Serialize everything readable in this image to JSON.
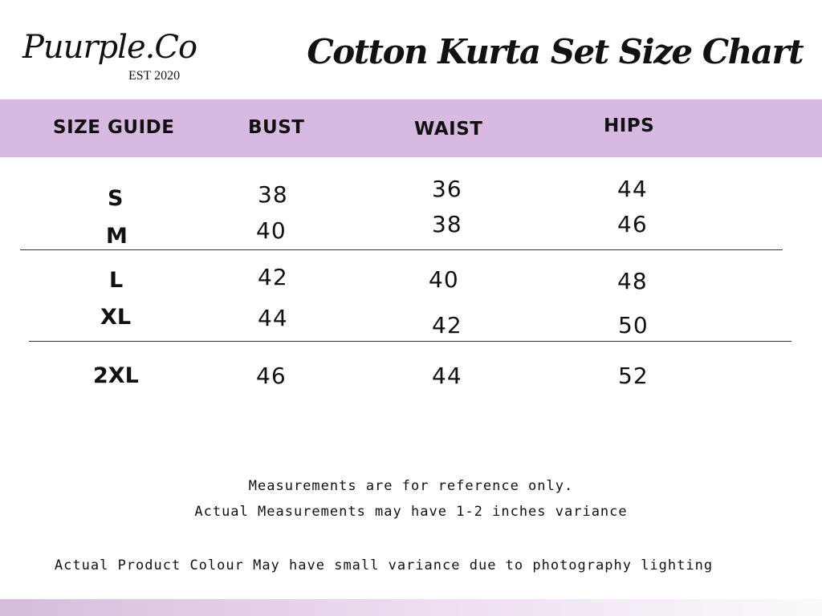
{
  "brand": {
    "logo_text": "Puurple.Co",
    "est": "EST 2020"
  },
  "title": "Cotton Kurta  Set Size Chart",
  "colors": {
    "header_band": "#d8b9e1",
    "footer_gradient_start": "#d6bcdd"
  },
  "table": {
    "headers": [
      "SIZE GUIDE",
      "BUST",
      "WAIST",
      "HIPS"
    ],
    "rows": [
      {
        "size": "S",
        "bust": "38",
        "waist": "36",
        "hips": "44"
      },
      {
        "size": "M",
        "bust": "40",
        "waist": "38",
        "hips": "46"
      },
      {
        "size": "L",
        "bust": "42",
        "waist": "40",
        "hips": "48"
      },
      {
        "size": "XL",
        "bust": "44",
        "waist": "42",
        "hips": "50"
      },
      {
        "size": "2XL",
        "bust": "46",
        "waist": "44",
        "hips": "52"
      }
    ]
  },
  "notes": [
    "Measurements are for reference only.",
    "Actual Measurements may have 1-2 inches variance",
    "Actual Product Colour May have small variance due to photography lighting"
  ]
}
